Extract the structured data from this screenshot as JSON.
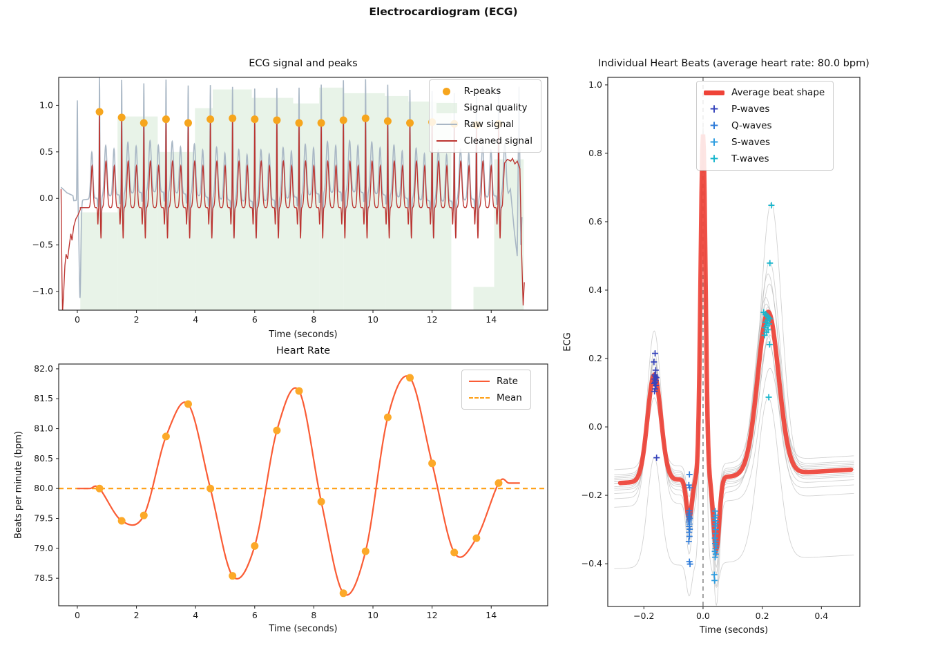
{
  "figure": {
    "title": "Electrocardiogram (ECG)"
  },
  "colors": {
    "r_peak_dot": "#F6A51D",
    "quality_fill": "#DCEDDC",
    "raw_signal": "#A9B7C5",
    "cleaned_signal": "#BC3430",
    "rate_line": "#FA5C35",
    "rate_dot": "#FCA929",
    "mean_line": "#FF9E12",
    "avg_beat": "#EF4338",
    "beat_line": "#ADADAD",
    "p_wave": "#3644BC",
    "q_wave": "#2E7BD9",
    "s_wave": "#2C9CE0",
    "t_wave": "#17B6CD",
    "vline": "#8A8A8A",
    "frame": "#1a1a1a"
  },
  "chart_data": [
    {
      "type": "line",
      "title": "ECG signal and peaks",
      "xlabel": "Time (seconds)",
      "xlim": [
        -0.63,
        15.91
      ],
      "ylim": [
        -1.2,
        1.3
      ],
      "xticks": [
        0,
        2,
        4,
        6,
        8,
        10,
        12,
        14
      ],
      "xtick_labels": [
        "0",
        "2",
        "4",
        "6",
        "8",
        "10",
        "12",
        "14"
      ],
      "yticks": [
        -1.0,
        -0.5,
        0.0,
        0.5,
        1.0
      ],
      "ytick_labels": [
        "−1.0",
        "−0.5",
        "0.0",
        "0.5",
        "1.0"
      ],
      "legend": [
        {
          "label": "R-peaks",
          "swatch": "dot",
          "color_key": "r_peak_dot"
        },
        {
          "label": "Signal quality",
          "swatch": "patch",
          "color_key": "quality_fill"
        },
        {
          "label": "Raw signal",
          "swatch": "line",
          "color_key": "raw_signal"
        },
        {
          "label": "Cleaned signal",
          "swatch": "line",
          "color_key": "cleaned_signal"
        }
      ],
      "r_peaks": {
        "times": [
          0.75,
          1.5,
          2.25,
          3.0,
          3.75,
          4.5,
          5.25,
          6.0,
          6.75,
          7.5,
          8.25,
          9.0,
          9.75,
          10.5,
          11.25,
          12.0,
          12.75,
          13.5,
          14.25
        ],
        "values": [
          0.93,
          0.87,
          0.81,
          0.85,
          0.81,
          0.85,
          0.86,
          0.85,
          0.84,
          0.81,
          0.81,
          0.84,
          0.86,
          0.83,
          0.81,
          0.82,
          0.8,
          0.79,
          0.8
        ]
      },
      "signal_quality_segments": [
        {
          "x0": 0.1,
          "x1": 1.36,
          "top": -0.15
        },
        {
          "x0": 1.36,
          "x1": 2.72,
          "top": 0.88
        },
        {
          "x0": 2.72,
          "x1": 3.98,
          "top": 0.5
        },
        {
          "x0": 3.98,
          "x1": 4.58,
          "top": 0.97
        },
        {
          "x0": 4.58,
          "x1": 5.9,
          "top": 1.17
        },
        {
          "x0": 5.9,
          "x1": 7.3,
          "top": 1.08
        },
        {
          "x0": 7.3,
          "x1": 8.18,
          "top": 1.02
        },
        {
          "x0": 8.18,
          "x1": 9.0,
          "top": 1.19
        },
        {
          "x0": 9.0,
          "x1": 10.4,
          "top": 1.13
        },
        {
          "x0": 10.4,
          "x1": 11.2,
          "top": 1.1
        },
        {
          "x0": 11.2,
          "x1": 12.65,
          "top": 1.04
        },
        {
          "x0": 13.4,
          "x1": 14.1,
          "top": -0.95
        },
        {
          "x0": 14.1,
          "x1": 15.1,
          "top": 0.42
        }
      ],
      "cleaned": {
        "baseline": -0.1,
        "r_width": 0.013,
        "r_amp_add": 0.0,
        "waves": [
          {
            "off": -0.25,
            "amp": 0.45,
            "width": 0.045
          },
          {
            "off": -0.055,
            "amp": -0.18,
            "width": 0.015
          },
          {
            "off": 0.05,
            "amp": -0.33,
            "width": 0.018
          },
          {
            "off": 0.22,
            "amp": 0.5,
            "width": 0.055
          }
        ],
        "extra": [],
        "start_points": [
          [
            -0.55,
            0.1
          ],
          [
            -0.52,
            -0.85
          ],
          [
            -0.5,
            -1.22
          ],
          [
            -0.46,
            -1.0
          ],
          [
            -0.42,
            -0.72
          ],
          [
            -0.38,
            -0.6
          ],
          [
            -0.33,
            -0.65
          ],
          [
            -0.27,
            -0.5
          ],
          [
            -0.22,
            -0.38
          ],
          [
            -0.18,
            -0.45
          ],
          [
            -0.12,
            -0.3
          ],
          [
            -0.05,
            -0.22
          ],
          [
            0.02,
            -0.18
          ],
          [
            0.1,
            -0.12
          ]
        ],
        "end_points": [
          [
            14.45,
            0.38
          ],
          [
            14.55,
            0.42
          ],
          [
            14.66,
            0.4
          ],
          [
            14.72,
            0.43
          ],
          [
            14.8,
            0.37
          ],
          [
            14.88,
            0.4
          ],
          [
            14.97,
            0.32
          ],
          [
            15.03,
            -0.6
          ],
          [
            15.08,
            -1.15
          ],
          [
            15.12,
            -0.9
          ]
        ],
        "synth_range": [
          0.1,
          14.38
        ]
      },
      "raw": {
        "baseline": 0.02,
        "r_width": 0.015,
        "r_amp_add": 0.38,
        "wander_amp": 0.05,
        "wander_period": 6.5,
        "waves": [
          {
            "off": -0.26,
            "amp": 0.5,
            "width": 0.05
          },
          {
            "off": -0.06,
            "amp": -0.1,
            "width": 0.015
          },
          {
            "off": 0.05,
            "amp": -0.4,
            "width": 0.02
          },
          {
            "off": 0.21,
            "amp": 0.55,
            "width": 0.06
          }
        ],
        "extra": [
          {
            "t": 0.0,
            "amp": 1.08,
            "width": 0.015
          },
          {
            "t": 0.09,
            "amp": -1.05,
            "width": 0.04
          }
        ],
        "start_points": [
          [
            -0.55,
            0.12
          ],
          [
            -0.35,
            0.06
          ],
          [
            -0.15,
            0.03
          ]
        ],
        "end_points": [
          [
            14.65,
            0.1
          ],
          [
            14.78,
            -0.35
          ],
          [
            14.88,
            -0.62
          ],
          [
            14.94,
            1.2
          ],
          [
            15.0,
            -0.5
          ],
          [
            15.04,
            -0.2
          ]
        ],
        "synth_range": [
          -0.12,
          14.58
        ]
      }
    },
    {
      "type": "line",
      "title": "Heart Rate",
      "xlabel": "Time (seconds)",
      "ylabel": "Beats per minute (bpm)",
      "xlim": [
        -0.63,
        15.91
      ],
      "ylim": [
        78.04,
        82.08
      ],
      "xticks": [
        0,
        2,
        4,
        6,
        8,
        10,
        12,
        14
      ],
      "xtick_labels": [
        "0",
        "2",
        "4",
        "6",
        "8",
        "10",
        "12",
        "14"
      ],
      "yticks": [
        78.5,
        79.0,
        79.5,
        80.0,
        80.5,
        81.0,
        81.5,
        82.0
      ],
      "ytick_labels": [
        "78.5",
        "79.0",
        "79.5",
        "80.0",
        "80.5",
        "81.0",
        "81.5",
        "82.0"
      ],
      "legend": [
        {
          "label": "Rate",
          "swatch": "line",
          "color_key": "rate_line"
        },
        {
          "label": "Mean",
          "swatch": "dash",
          "color_key": "mean_line"
        }
      ],
      "points": {
        "x": [
          0.75,
          1.5,
          2.25,
          3.0,
          3.75,
          4.5,
          5.25,
          6.0,
          6.75,
          7.5,
          8.25,
          9.0,
          9.75,
          10.5,
          11.25,
          12.0,
          12.75,
          13.5,
          14.25
        ],
        "bpm": [
          80.0,
          79.46,
          79.55,
          80.87,
          81.41,
          80.0,
          78.54,
          79.04,
          80.97,
          81.63,
          79.78,
          78.25,
          78.95,
          81.19,
          81.85,
          80.42,
          78.93,
          79.17,
          80.09
        ]
      },
      "mean_bpm": 80.0,
      "line_lead": [
        [
          0.0,
          80.0
        ],
        [
          0.42,
          80.0
        ]
      ],
      "line_tail": [
        [
          14.6,
          80.09
        ],
        [
          14.97,
          80.09
        ]
      ]
    },
    {
      "type": "line",
      "title": "Individual Heart Beats (average heart rate: 80.0 bpm)",
      "xlabel": "Time (seconds)",
      "ylabel": "ECG",
      "xlim": [
        -0.322,
        0.53
      ],
      "ylim": [
        -0.525,
        1.022
      ],
      "xticks": [
        -0.2,
        0.0,
        0.2,
        0.4
      ],
      "xtick_labels": [
        "−0.2",
        "0.0",
        "0.2",
        "0.4"
      ],
      "yticks": [
        -0.4,
        -0.2,
        0.0,
        0.2,
        0.4,
        0.6,
        0.8,
        1.0
      ],
      "ytick_labels": [
        "−0.4",
        "−0.2",
        "0.0",
        "0.2",
        "0.4",
        "0.6",
        "0.8",
        "1.0"
      ],
      "vline_x": 0.0,
      "legend": [
        {
          "label": "Average beat shape",
          "swatch": "thickline",
          "color_key": "avg_beat"
        },
        {
          "label": "P-waves",
          "swatch": "plus",
          "color_key": "p_wave"
        },
        {
          "label": "Q-waves",
          "swatch": "plus",
          "color_key": "q_wave"
        },
        {
          "label": "S-waves",
          "swatch": "plus",
          "color_key": "s_wave"
        },
        {
          "label": "T-waves",
          "swatch": "plus",
          "color_key": "t_wave"
        }
      ],
      "average_beat": {
        "x_range": [
          -0.28,
          0.5
        ],
        "baseline": -0.15,
        "slope": 0.05,
        "waves": [
          {
            "name": "P",
            "center": -0.165,
            "amp": 0.31,
            "width": 0.032
          },
          {
            "name": "Q",
            "center": -0.047,
            "amp": -0.115,
            "width": 0.013
          },
          {
            "name": "R",
            "center": 0.0,
            "amp": 1.005,
            "width": 0.0115
          },
          {
            "name": "S",
            "center": 0.045,
            "amp": -0.21,
            "width": 0.014
          },
          {
            "name": "T",
            "center": 0.22,
            "amp": 0.475,
            "width": 0.05
          }
        ]
      },
      "individual_beats": [
        {
          "p": 1.4,
          "q": 1.0,
          "r": 1.02,
          "s": 0.95,
          "t": 1.66,
          "shift": 0.005,
          "t_shift": 0.01
        },
        {
          "p": 1.15,
          "q": 1.0,
          "r": 1.0,
          "s": 1.05,
          "t": 1.31,
          "shift": 0.0,
          "t_shift": 0.005
        },
        {
          "p": 1.03,
          "q": 0.8,
          "r": 1.25,
          "s": 0.34,
          "t": 1.0,
          "shift": -0.25,
          "t_shift": 0.0
        },
        {
          "p": 0.95,
          "q": 1.0,
          "r": 0.99,
          "s": 1.0,
          "t": 0.97,
          "shift": 0.01,
          "t_shift": 0.0
        },
        {
          "p": 1.05,
          "q": 1.1,
          "r": 1.01,
          "s": 0.92,
          "t": 1.02,
          "shift": -0.01,
          "t_shift": -0.004
        },
        {
          "p": 0.9,
          "q": 0.9,
          "r": 1.0,
          "s": 1.1,
          "t": 0.95,
          "shift": 0.02,
          "t_shift": 0.004
        },
        {
          "p": 1.1,
          "q": 1.0,
          "r": 0.98,
          "s": 1.0,
          "t": 1.05,
          "shift": 0.0,
          "t_shift": -0.006
        },
        {
          "p": 0.85,
          "q": 1.2,
          "r": 1.02,
          "s": 1.15,
          "t": 0.9,
          "shift": -0.02,
          "t_shift": 0.006
        },
        {
          "p": 1.0,
          "q": 1.0,
          "r": 1.0,
          "s": 0.85,
          "t": 1.0,
          "shift": 0.015,
          "t_shift": 0.0
        },
        {
          "p": 1.2,
          "q": 0.9,
          "r": 0.99,
          "s": 1.05,
          "t": 0.93,
          "shift": -0.015,
          "t_shift": 0.008
        },
        {
          "p": 0.95,
          "q": 1.0,
          "r": 1.01,
          "s": 0.95,
          "t": 1.08,
          "shift": 0.005,
          "t_shift": -0.008
        },
        {
          "p": 1.08,
          "q": 1.1,
          "r": 1.0,
          "s": 1.2,
          "t": 0.88,
          "shift": -0.03,
          "t_shift": 0.0
        },
        {
          "p": 0.92,
          "q": 1.0,
          "r": 0.97,
          "s": 0.9,
          "t": 1.12,
          "shift": 0.025,
          "t_shift": 0.004
        },
        {
          "p": 1.3,
          "q": 1.2,
          "r": 1.03,
          "s": 1.3,
          "t": 0.98,
          "shift": -0.045,
          "t_shift": -0.005
        },
        {
          "p": 0.75,
          "q": 0.8,
          "r": 1.0,
          "s": 0.75,
          "t": 1.15,
          "shift": 0.04,
          "t_shift": 0.0
        },
        {
          "p": 1.45,
          "q": 1.3,
          "r": 1.0,
          "s": 1.45,
          "t": 0.8,
          "shift": -0.07,
          "t_shift": 0.006
        }
      ],
      "wave_markers": {
        "p": {
          "label": "P-waves",
          "color_key": "p_wave",
          "points": [
            [
              -0.162,
              0.215
            ],
            [
              -0.166,
              0.19
            ],
            [
              -0.16,
              0.166
            ],
            [
              -0.163,
              0.152
            ],
            [
              -0.161,
              0.148
            ],
            [
              -0.158,
              0.144
            ],
            [
              -0.164,
              0.14
            ],
            [
              -0.16,
              0.136
            ],
            [
              -0.162,
              0.131
            ],
            [
              -0.165,
              0.127
            ],
            [
              -0.159,
              0.121
            ],
            [
              -0.162,
              0.111
            ],
            [
              -0.164,
              0.104
            ],
            [
              -0.157,
              -0.09
            ]
          ]
        },
        "q": {
          "label": "Q-waves",
          "color_key": "q_wave",
          "points": [
            [
              -0.046,
              -0.139
            ],
            [
              -0.048,
              -0.17
            ],
            [
              -0.045,
              -0.178
            ],
            [
              -0.047,
              -0.245
            ],
            [
              -0.046,
              -0.252
            ],
            [
              -0.048,
              -0.257
            ],
            [
              -0.047,
              -0.262
            ],
            [
              -0.045,
              -0.267
            ],
            [
              -0.047,
              -0.272
            ],
            [
              -0.048,
              -0.278
            ],
            [
              -0.046,
              -0.284
            ],
            [
              -0.047,
              -0.291
            ],
            [
              -0.045,
              -0.299
            ],
            [
              -0.047,
              -0.308
            ],
            [
              -0.046,
              -0.32
            ],
            [
              -0.048,
              -0.335
            ],
            [
              -0.046,
              -0.394
            ],
            [
              -0.044,
              -0.401
            ]
          ]
        },
        "s": {
          "label": "S-waves",
          "color_key": "s_wave",
          "points": [
            [
              0.041,
              -0.246
            ],
            [
              0.043,
              -0.258
            ],
            [
              0.04,
              -0.266
            ],
            [
              0.042,
              -0.274
            ],
            [
              0.044,
              -0.282
            ],
            [
              0.041,
              -0.29
            ],
            [
              0.043,
              -0.3
            ],
            [
              0.042,
              -0.312
            ],
            [
              0.04,
              -0.325
            ],
            [
              0.043,
              -0.334
            ],
            [
              0.041,
              -0.341
            ],
            [
              0.044,
              -0.348
            ],
            [
              0.042,
              -0.356
            ],
            [
              0.04,
              -0.364
            ],
            [
              0.043,
              -0.372
            ],
            [
              0.041,
              -0.381
            ],
            [
              0.038,
              -0.432
            ],
            [
              0.039,
              -0.449
            ]
          ]
        },
        "t": {
          "label": "T-waves",
          "color_key": "t_wave",
          "points": [
            [
              0.205,
              0.335
            ],
            [
              0.211,
              0.33
            ],
            [
              0.216,
              0.325
            ],
            [
              0.221,
              0.32
            ],
            [
              0.226,
              0.316
            ],
            [
              0.218,
              0.311
            ],
            [
              0.212,
              0.306
            ],
            [
              0.223,
              0.301
            ],
            [
              0.216,
              0.296
            ],
            [
              0.209,
              0.29
            ],
            [
              0.22,
              0.284
            ],
            [
              0.214,
              0.277
            ],
            [
              0.208,
              0.268
            ],
            [
              0.231,
              0.648
            ],
            [
              0.226,
              0.479
            ],
            [
              0.222,
              0.087
            ],
            [
              0.225,
              0.241
            ]
          ]
        }
      }
    }
  ]
}
